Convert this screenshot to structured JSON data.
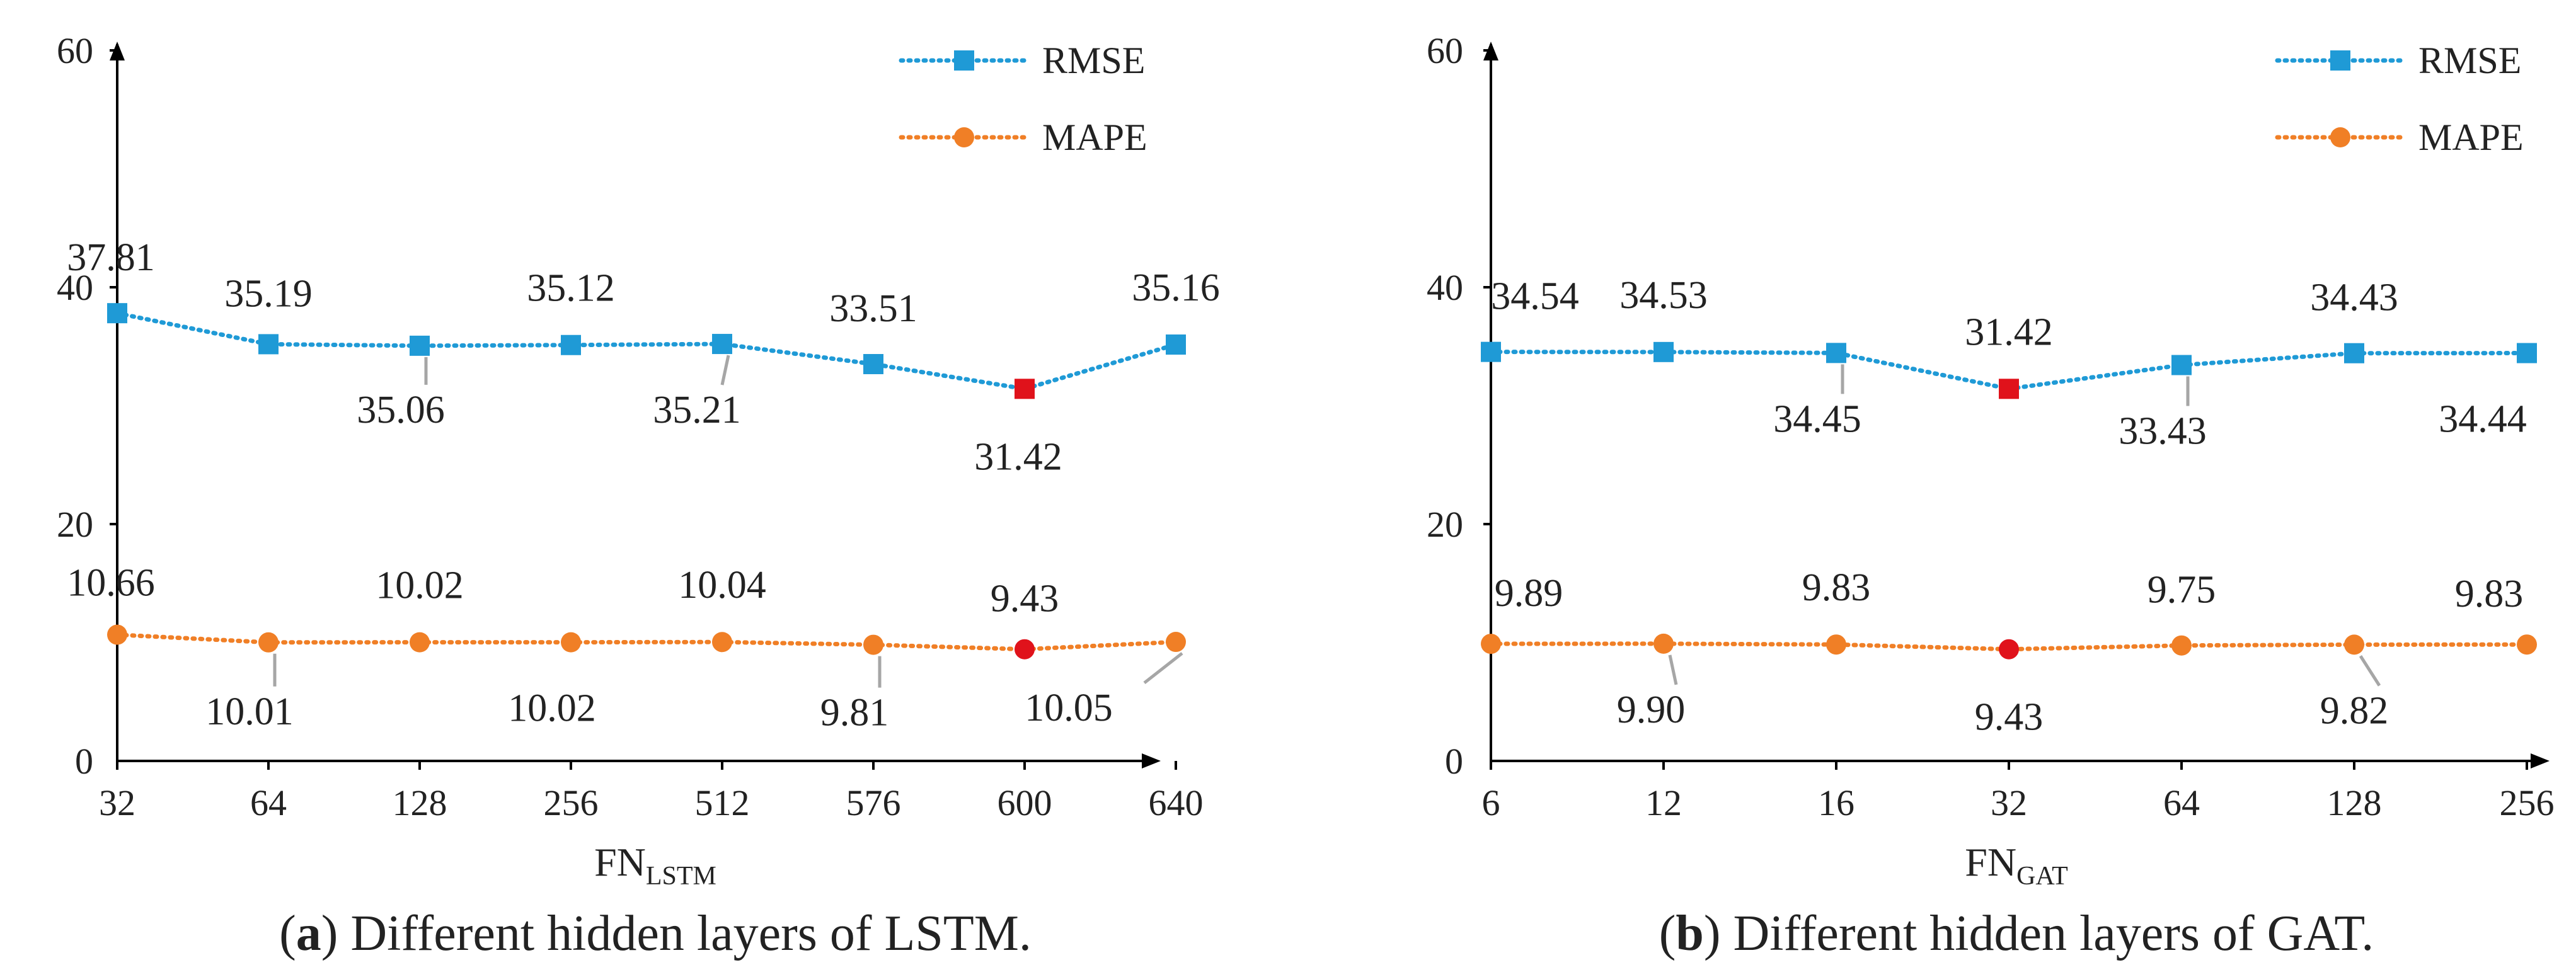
{
  "colors": {
    "rmse": "#1f9ad6",
    "mape": "#f07f26",
    "highlight": "#e0121b",
    "leader": "#a6a6a6",
    "axis": "#000000"
  },
  "chart_data": [
    {
      "type": "line",
      "id": "a",
      "caption_bold": "a",
      "caption_text": "Different hidden layers of LSTM.",
      "xlabel_main": "FN",
      "xlabel_sub": "LSTM",
      "categories": [
        "32",
        "64",
        "128",
        "256",
        "512",
        "576",
        "600",
        "640"
      ],
      "ylim": [
        0,
        60
      ],
      "yticks": [
        "0",
        "20",
        "40",
        "60"
      ],
      "legend": [
        "RMSE",
        "MAPE"
      ],
      "series": [
        {
          "name": "RMSE",
          "values": [
            37.81,
            35.19,
            35.06,
            35.12,
            35.21,
            33.51,
            31.42,
            35.16
          ],
          "labels": [
            "37.81",
            "35.19",
            "35.06",
            "35.12",
            "35.21",
            "33.51",
            "31.42",
            "35.16"
          ],
          "highlight_index": 6
        },
        {
          "name": "MAPE",
          "values": [
            10.66,
            10.01,
            10.02,
            10.02,
            10.04,
            9.81,
            9.43,
            10.05
          ],
          "labels": [
            "10.66",
            "10.01",
            "10.02",
            "10.02",
            "10.04",
            "9.81",
            "9.43",
            "10.05"
          ],
          "highlight_index": 6
        }
      ]
    },
    {
      "type": "line",
      "id": "b",
      "caption_bold": "b",
      "caption_text": "Different hidden layers of GAT.",
      "xlabel_main": "FN",
      "xlabel_sub": "GAT",
      "categories": [
        "6",
        "12",
        "16",
        "32",
        "64",
        "128",
        "256"
      ],
      "ylim": [
        0,
        60
      ],
      "yticks": [
        "0",
        "20",
        "40",
        "60"
      ],
      "legend": [
        "RMSE",
        "MAPE"
      ],
      "series": [
        {
          "name": "RMSE",
          "values": [
            34.54,
            34.53,
            34.45,
            31.42,
            33.43,
            34.43,
            34.44
          ],
          "labels": [
            "34.54",
            "34.53",
            "34.45",
            "31.42",
            "33.43",
            "34.43",
            "34.44"
          ],
          "highlight_index": 3
        },
        {
          "name": "MAPE",
          "values": [
            9.89,
            9.9,
            9.83,
            9.43,
            9.75,
            9.82,
            9.83
          ],
          "labels": [
            "9.89",
            "9.90",
            "9.83",
            "9.43",
            "9.75",
            "9.82",
            "9.83"
          ],
          "highlight_index": 3
        }
      ]
    }
  ]
}
